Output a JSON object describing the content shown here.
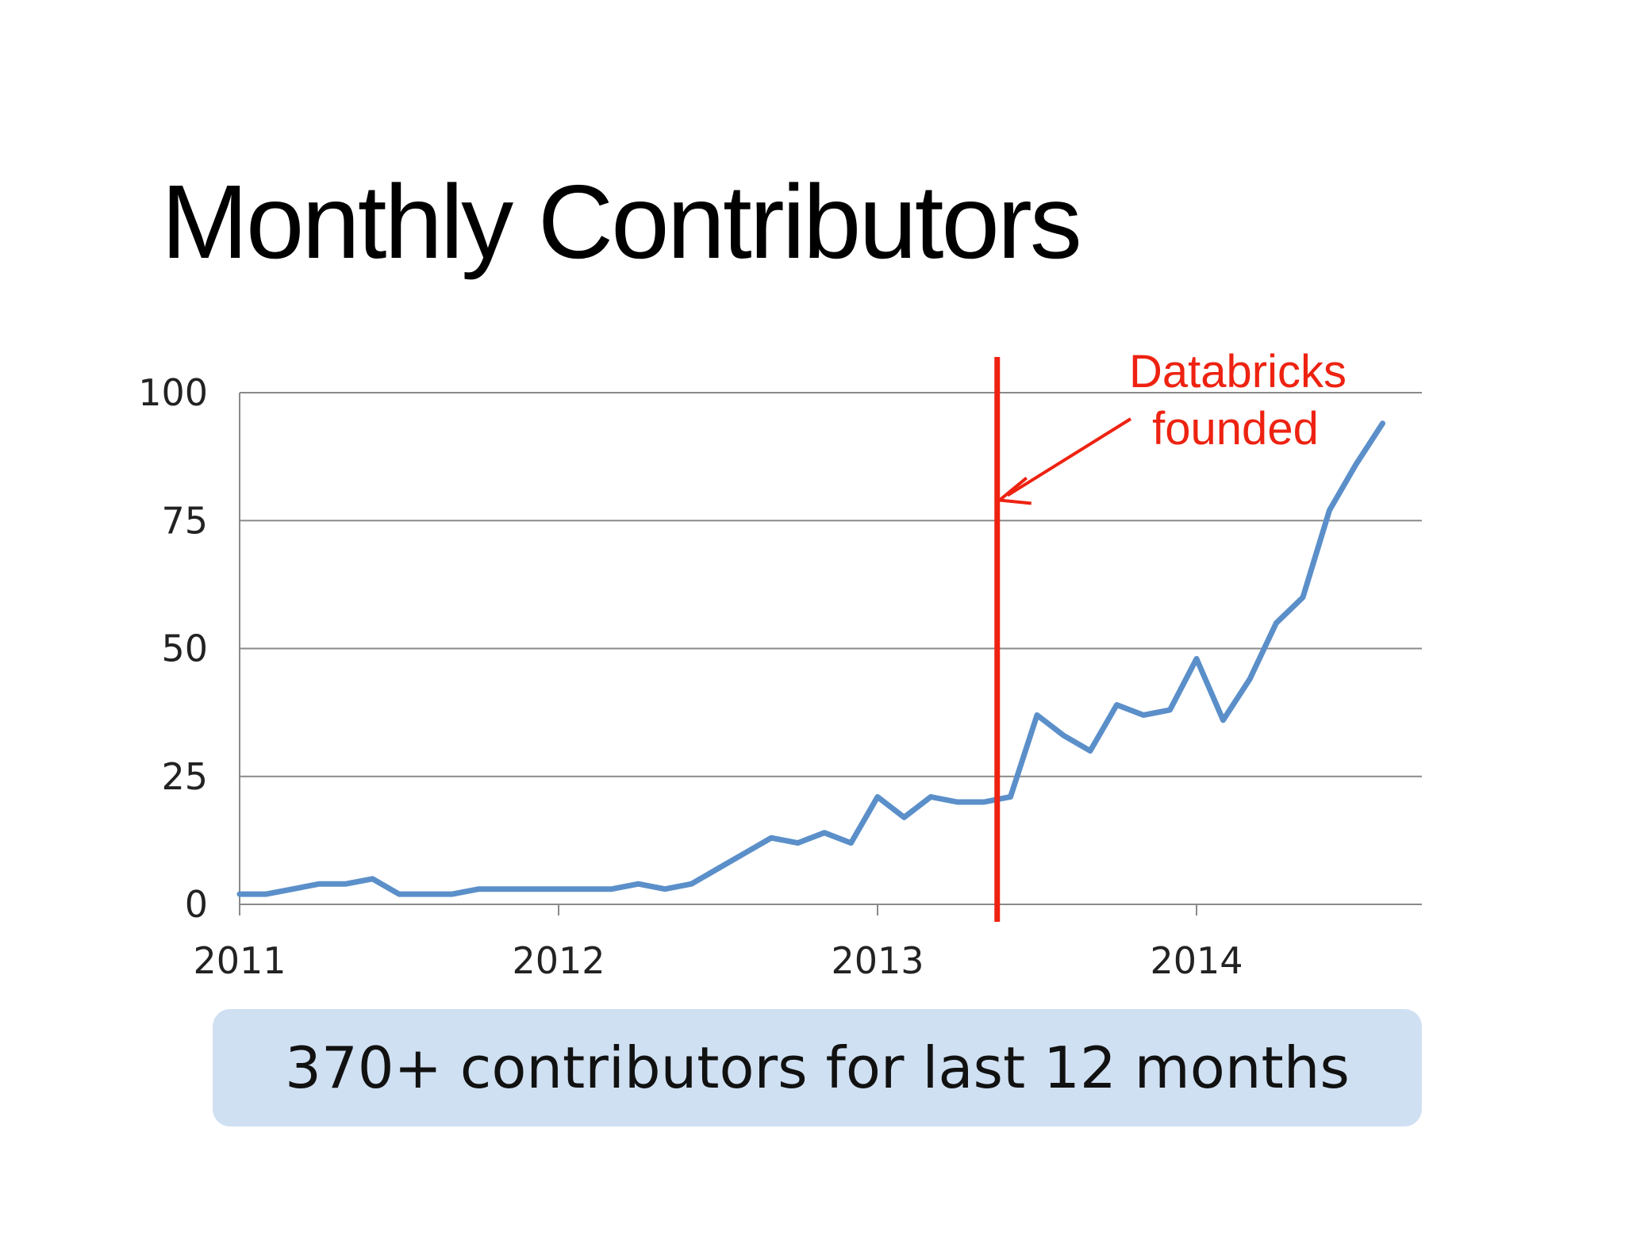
{
  "slide": {
    "title": "Monthly Contributors",
    "callout": "370+ contributors for last 12 months"
  },
  "chart_data": {
    "type": "line",
    "title": "",
    "xlabel": "",
    "ylabel": "",
    "x_ticks": [
      "2011",
      "2012",
      "2013",
      "2014"
    ],
    "y_ticks": [
      "0",
      "25",
      "50",
      "75",
      "100"
    ],
    "ylim": [
      0,
      100
    ],
    "xlim_months": [
      0,
      44
    ],
    "grid": "horizontal",
    "series": [
      {
        "color": "#5b8fc9",
        "months": [
          0,
          1,
          2,
          3,
          4,
          5,
          6,
          7,
          8,
          9,
          10,
          11,
          12,
          13,
          14,
          15,
          16,
          17,
          18,
          19,
          20,
          21,
          22,
          23,
          24,
          25,
          26,
          27,
          28,
          29,
          30,
          31,
          32,
          33,
          34,
          35,
          36,
          37,
          38,
          39,
          40,
          41,
          42,
          43
        ],
        "values": [
          2,
          2,
          3,
          4,
          4,
          5,
          2,
          2,
          2,
          3,
          3,
          3,
          3,
          3,
          3,
          4,
          3,
          4,
          7,
          10,
          13,
          12,
          14,
          12,
          21,
          17,
          21,
          20,
          20,
          21,
          37,
          33,
          30,
          39,
          37,
          38,
          48,
          36,
          44,
          55,
          60,
          77,
          86,
          94
        ]
      }
    ],
    "annotation": {
      "label_line1": "Databricks",
      "label_line2": "founded",
      "color": "#ee2211",
      "month": 28.5,
      "arrow_target_value": 79
    }
  }
}
